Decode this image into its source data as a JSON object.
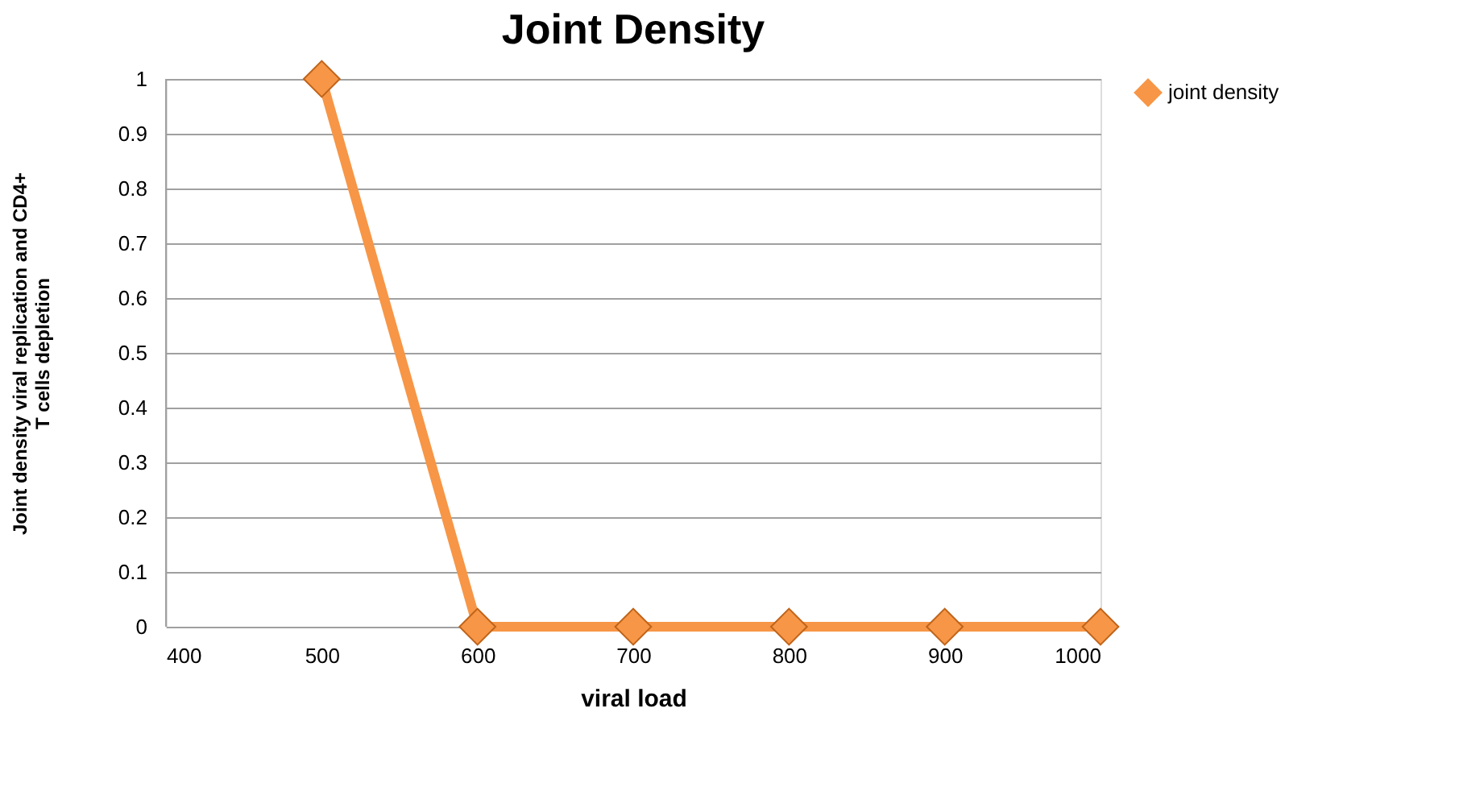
{
  "chart_data": {
    "type": "line",
    "title": "Joint Density",
    "xlabel": "viral load",
    "ylabel": "Joint density viral replication and CD4+\nT cells depletion",
    "x": [
      500,
      600,
      700,
      800,
      900,
      1000
    ],
    "series": [
      {
        "name": "joint density",
        "color": "#f79646",
        "values": [
          1,
          0,
          0,
          0,
          0,
          0
        ]
      }
    ],
    "xlim": [
      400,
      1000
    ],
    "xticks": [
      400,
      500,
      600,
      700,
      800,
      900,
      1000
    ],
    "ylim": [
      0,
      1
    ],
    "yticks": [
      0,
      0.1,
      0.2,
      0.3,
      0.4,
      0.5,
      0.6,
      0.7,
      0.8,
      0.9,
      1
    ],
    "grid": "y",
    "legend": "right",
    "marker": "diamond",
    "line_style": "solid"
  }
}
